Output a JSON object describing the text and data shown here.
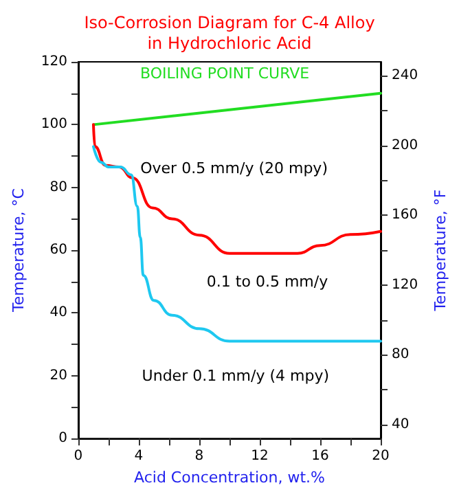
{
  "chart_data": {
    "type": "line",
    "title": "Iso-Corrosion Diagram for C-4 Alloy\nin Hydrochloric Acid",
    "xlabel": "Acid Concentration, wt.%",
    "ylabel": "Temperature, °C",
    "y2label": "Temperature, °F",
    "xlim": [
      0,
      20
    ],
    "xticks": [
      0,
      {
        "value": 2,
        "label": null
      },
      4,
      {
        "value": 6,
        "label": null
      },
      8,
      {
        "value": 10,
        "label": null
      },
      12,
      {
        "value": 14,
        "label": null
      },
      16,
      {
        "value": 18,
        "label": null
      },
      20
    ],
    "ylim": [
      0,
      120
    ],
    "yticks": [
      0,
      {
        "value": 10,
        "label": null
      },
      20,
      {
        "value": 30,
        "label": null
      },
      40,
      {
        "value": 50,
        "label": null
      },
      60,
      {
        "value": 70,
        "label": null
      },
      80,
      {
        "value": 90,
        "label": null
      },
      100,
      {
        "value": 110,
        "label": null
      },
      120
    ],
    "y2lim": [
      32,
      248
    ],
    "y2ticks": [
      40,
      {
        "value": 60,
        "label": null
      },
      80,
      {
        "value": 100,
        "label": null
      },
      120,
      {
        "value": 140,
        "label": null
      },
      160,
      {
        "value": 180,
        "label": null
      },
      200,
      {
        "value": 220,
        "label": null
      },
      240
    ],
    "grid": false,
    "legend": false,
    "marker": "none",
    "line_style": "solid",
    "series": [
      {
        "name": "BOILING POINT CURVE",
        "color": "#22dd22",
        "x": [
          1,
          20
        ],
        "values": [
          100,
          110
        ]
      },
      {
        "color": "#ff0000",
        "x": [
          1,
          1.1,
          1.8,
          2.7,
          3.6,
          4.9,
          6.2,
          8,
          10,
          12,
          14.5,
          16,
          18,
          20
        ],
        "values": [
          100,
          93,
          87,
          86.5,
          83,
          73.5,
          70,
          64.8,
          59,
          59,
          59,
          61.5,
          65,
          66
        ]
      },
      {
        "color": "#1ec8f0",
        "x": [
          1,
          1.5,
          2,
          2.8,
          3.5,
          3.9,
          4.1,
          4.3,
          5,
          6.2,
          8,
          10,
          20
        ],
        "values": [
          93,
          88,
          86.5,
          86.5,
          84,
          74,
          64,
          52,
          44,
          39.3,
          35,
          31,
          31
        ]
      }
    ],
    "annotations": [
      "Over 0.5 mm/y (20 mpy)",
      "0.1 to 0.5 mm/y",
      "Under 0.1 mm/y (4 mpy)"
    ]
  }
}
